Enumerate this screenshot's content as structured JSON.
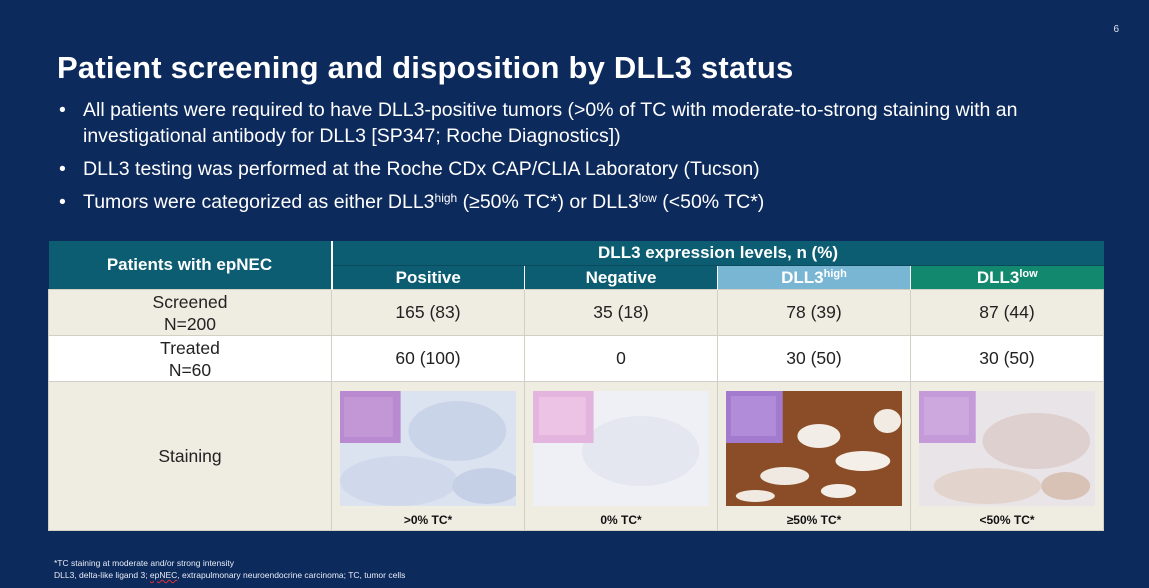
{
  "page_number": "6",
  "title": "Patient screening and disposition by DLL3 status",
  "bullets": {
    "b1": "All patients were required to have DLL3-positive tumors (>0% of TC with moderate-to-strong staining with an investigational antibody for DLL3 [SP347; Roche Diagnostics])",
    "b2": "DLL3 testing was performed at the Roche CDx CAP/CLIA Laboratory (Tucson)",
    "b3_pre": "Tumors were categorized as either DLL3",
    "b3_sup1": "high",
    "b3_mid": " (≥50% TC*) or DLL3",
    "b3_sup2": "low",
    "b3_post": " (<50% TC*)"
  },
  "table": {
    "header_patients": "Patients with epNEC",
    "header_group": "DLL3 expression levels, n (%)",
    "columns": {
      "positive": "Positive",
      "negative": "Negative",
      "high_base": "DLL3",
      "high_sup": "high",
      "low_base": "DLL3",
      "low_sup": "low"
    },
    "screened": {
      "label1": "Screened",
      "label2": "N=200",
      "positive": "165 (83)",
      "negative": "35 (18)",
      "high": "78 (39)",
      "low": "87 (44)"
    },
    "treated": {
      "label1": "Treated",
      "label2": "N=60",
      "positive": "60 (100)",
      "negative": "0",
      "high": "30 (50)",
      "low": "30 (50)"
    },
    "staining": {
      "label": "Staining",
      "cap_positive": ">0% TC*",
      "cap_negative": "0% TC*",
      "cap_high": "≥50% TC*",
      "cap_low": "<50% TC*"
    }
  },
  "footnotes": {
    "line1": "*TC staining at moderate and/or strong intensity",
    "line2_pre": "DLL3, delta-like ligand 3; ",
    "line2_term": "epNEC",
    "line2_post": ", extrapulmonary neuroendocrine carcinoma; TC, tumor cells"
  }
}
